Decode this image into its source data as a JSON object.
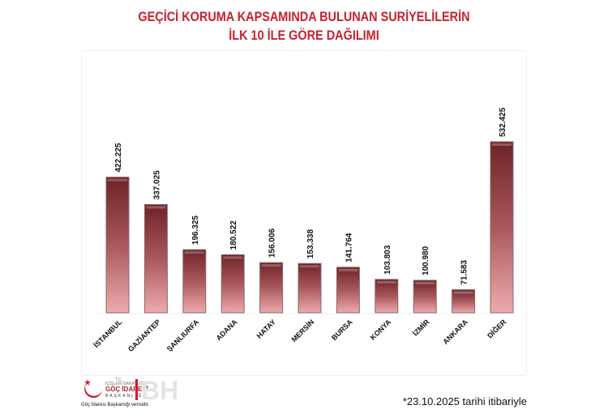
{
  "chart_data": {
    "type": "bar",
    "title": [
      "GEÇİCİ KORUMA KAPSAMINDA BULUNAN SURİYELİLERİN",
      "İLK 10 İLE GÖRE DAĞILIMI"
    ],
    "categories": [
      "İSTANBUL",
      "GAZİANTEP",
      "ŞANLIURFA",
      "ADANA",
      "HATAY",
      "MERSİN",
      "BURSA",
      "KONYA",
      "İZMİR",
      "ANKARA",
      "DİĞER"
    ],
    "values": [
      422225,
      337025,
      196325,
      180522,
      156006,
      153338,
      141764,
      103803,
      100980,
      71583,
      532425
    ],
    "value_labels": [
      "422.225",
      "337.025",
      "196.325",
      "180.522",
      "156.006",
      "153.338",
      "141.764",
      "103.803",
      "100.980",
      "71.583",
      "532.425"
    ],
    "ylim": [
      0,
      532425
    ],
    "grid": false,
    "colors": {
      "bar_top": "#6e2328",
      "bar_bottom": "#eaa6a9",
      "title": "#c8202f"
    }
  },
  "footer": {
    "note": "*23.10.2025 tarihi itibariyle",
    "logo": {
      "tc": "T.C.",
      "ministry": "İÇİŞLERİ BAKANLIĞI",
      "name": "GÖÇ İDARESİ",
      "sub": "BAŞKANLIĞI",
      "source": "Göç İdaresi Başkanlığı verisidir.",
      "watermark": "BH"
    }
  }
}
